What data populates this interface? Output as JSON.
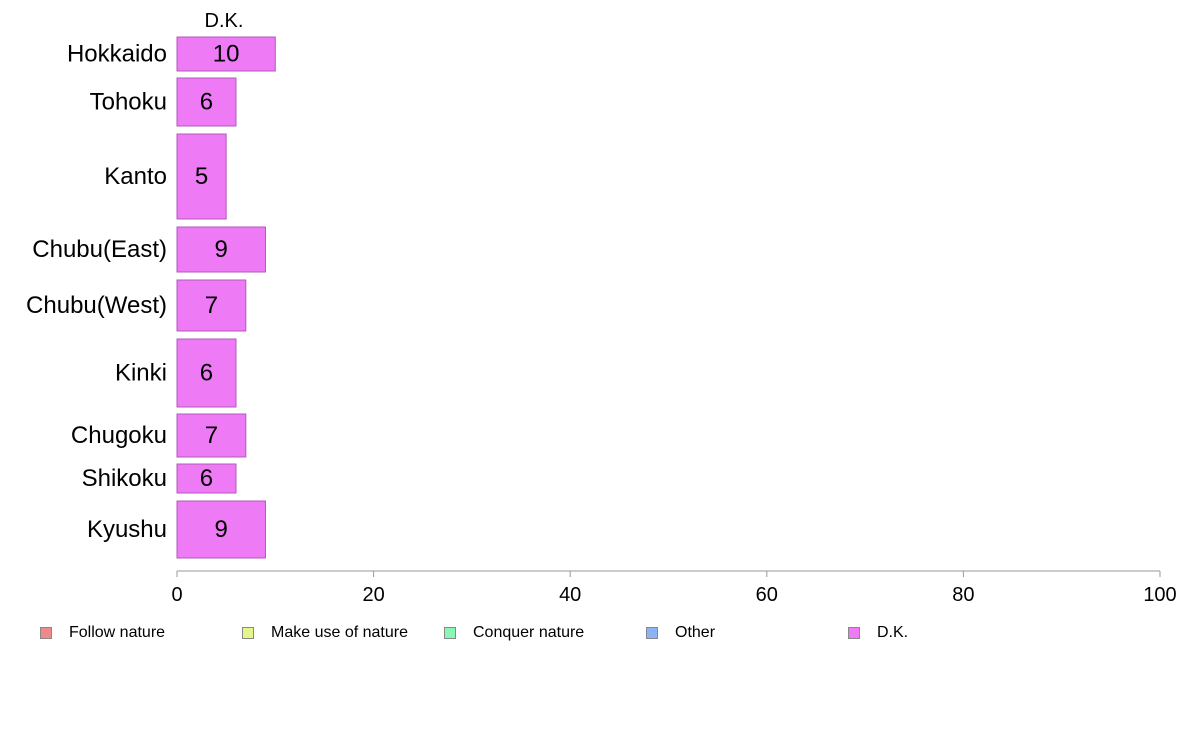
{
  "chart_data": {
    "type": "bar",
    "orientation": "horizontal",
    "stacked": true,
    "column_header": "D.K.",
    "categories": [
      "Hokkaido",
      "Tohoku",
      "Kanto",
      "Chubu(East)",
      "Chubu(West)",
      "Kinki",
      "Chugoku",
      "Shikoku",
      "Kyushu"
    ],
    "series": [
      {
        "name": "Follow nature",
        "color": "#f08a8a",
        "values": [
          0,
          0,
          0,
          0,
          0,
          0,
          0,
          0,
          0
        ]
      },
      {
        "name": "Make use of nature",
        "color": "#e6f58a",
        "values": [
          0,
          0,
          0,
          0,
          0,
          0,
          0,
          0,
          0
        ]
      },
      {
        "name": "Conquer nature",
        "color": "#8af5b4",
        "values": [
          0,
          0,
          0,
          0,
          0,
          0,
          0,
          0,
          0
        ]
      },
      {
        "name": "Other",
        "color": "#8ab4f5",
        "values": [
          0,
          0,
          0,
          0,
          0,
          0,
          0,
          0,
          0
        ]
      },
      {
        "name": "D.K.",
        "color": "#ee7af5",
        "values": [
          10,
          6,
          5,
          9,
          7,
          6,
          7,
          6,
          9
        ]
      }
    ],
    "xlim": [
      0,
      100
    ],
    "xticks": [
      0,
      20,
      40,
      60,
      80,
      100
    ],
    "legend_position": "bottom",
    "grid": false
  }
}
